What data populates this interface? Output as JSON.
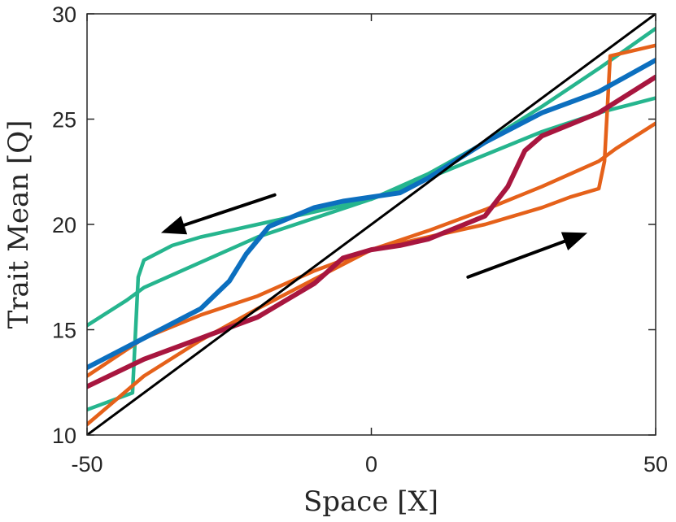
{
  "chart_data": {
    "type": "line",
    "title": "",
    "xlabel": "Space [X]",
    "ylabel": "Trait Mean [Q]",
    "xlim": [
      -50,
      50
    ],
    "ylim": [
      10,
      30
    ],
    "xticks": [
      -50,
      0,
      50
    ],
    "yticks": [
      10,
      15,
      20,
      25,
      30
    ],
    "grid": false,
    "legend": "none",
    "colors": {
      "teal": "#26b58e",
      "orange": "#e5611a",
      "blue": "#0c6fbf",
      "crimson": "#a8163f",
      "reference": "#000000",
      "arrow": "#000000"
    },
    "series": [
      {
        "color": "teal",
        "style": "thick",
        "x": [
          -50,
          -43,
          -40,
          -30,
          -20,
          -10,
          0,
          10,
          20,
          30,
          40,
          50
        ],
        "y": [
          15.2,
          16.4,
          17.0,
          18.2,
          19.4,
          20.3,
          21.2,
          22.2,
          23.3,
          24.4,
          25.3,
          26.0
        ]
      },
      {
        "color": "teal",
        "style": "thick",
        "x": [
          -50,
          -42,
          -41,
          -40,
          -35,
          -30,
          -20,
          -10,
          0,
          10,
          20,
          30,
          40,
          50
        ],
        "y": [
          11.2,
          12.0,
          17.5,
          18.3,
          19.0,
          19.4,
          20.0,
          20.6,
          21.2,
          22.4,
          23.9,
          25.6,
          27.4,
          29.3
        ]
      },
      {
        "color": "blue",
        "style": "highlight",
        "x": [
          -50,
          -40,
          -30,
          -25,
          -22,
          -18,
          -10,
          -5,
          0,
          5,
          10,
          20,
          30,
          40,
          50
        ],
        "y": [
          13.2,
          14.6,
          16.0,
          17.3,
          18.6,
          19.9,
          20.8,
          21.1,
          21.3,
          21.5,
          22.2,
          23.9,
          25.3,
          26.3,
          27.8
        ]
      },
      {
        "color": "orange",
        "style": "thick",
        "x": [
          -50,
          -40,
          -30,
          -20,
          -10,
          0,
          10,
          20,
          30,
          40,
          43,
          50
        ],
        "y": [
          12.8,
          14.6,
          15.7,
          16.6,
          17.8,
          18.8,
          19.7,
          20.7,
          21.8,
          23.0,
          23.6,
          24.8
        ]
      },
      {
        "color": "orange",
        "style": "thick",
        "x": [
          -50,
          -40,
          -30,
          -20,
          -10,
          0,
          10,
          20,
          30,
          35,
          40,
          41,
          42,
          50
        ],
        "y": [
          10.5,
          12.8,
          14.5,
          16.0,
          17.4,
          18.8,
          19.4,
          20.0,
          20.8,
          21.3,
          21.7,
          23.0,
          28.0,
          28.5
        ]
      },
      {
        "color": "crimson",
        "style": "highlight",
        "x": [
          -50,
          -40,
          -30,
          -20,
          -10,
          -5,
          0,
          5,
          10,
          20,
          24,
          27,
          30,
          40,
          50
        ],
        "y": [
          12.3,
          13.6,
          14.6,
          15.6,
          17.2,
          18.4,
          18.8,
          19.0,
          19.3,
          20.4,
          21.8,
          23.5,
          24.2,
          25.3,
          27.0
        ]
      },
      {
        "color": "reference",
        "style": "reference",
        "x": [
          -50,
          50
        ],
        "y": [
          10,
          30
        ]
      }
    ],
    "annotations": [
      {
        "type": "arrow",
        "color": "arrow",
        "from": [
          -17,
          21.4
        ],
        "to": [
          -37,
          19.6
        ]
      },
      {
        "type": "arrow",
        "color": "arrow",
        "from": [
          17,
          17.5
        ],
        "to": [
          38,
          19.6
        ]
      }
    ]
  }
}
